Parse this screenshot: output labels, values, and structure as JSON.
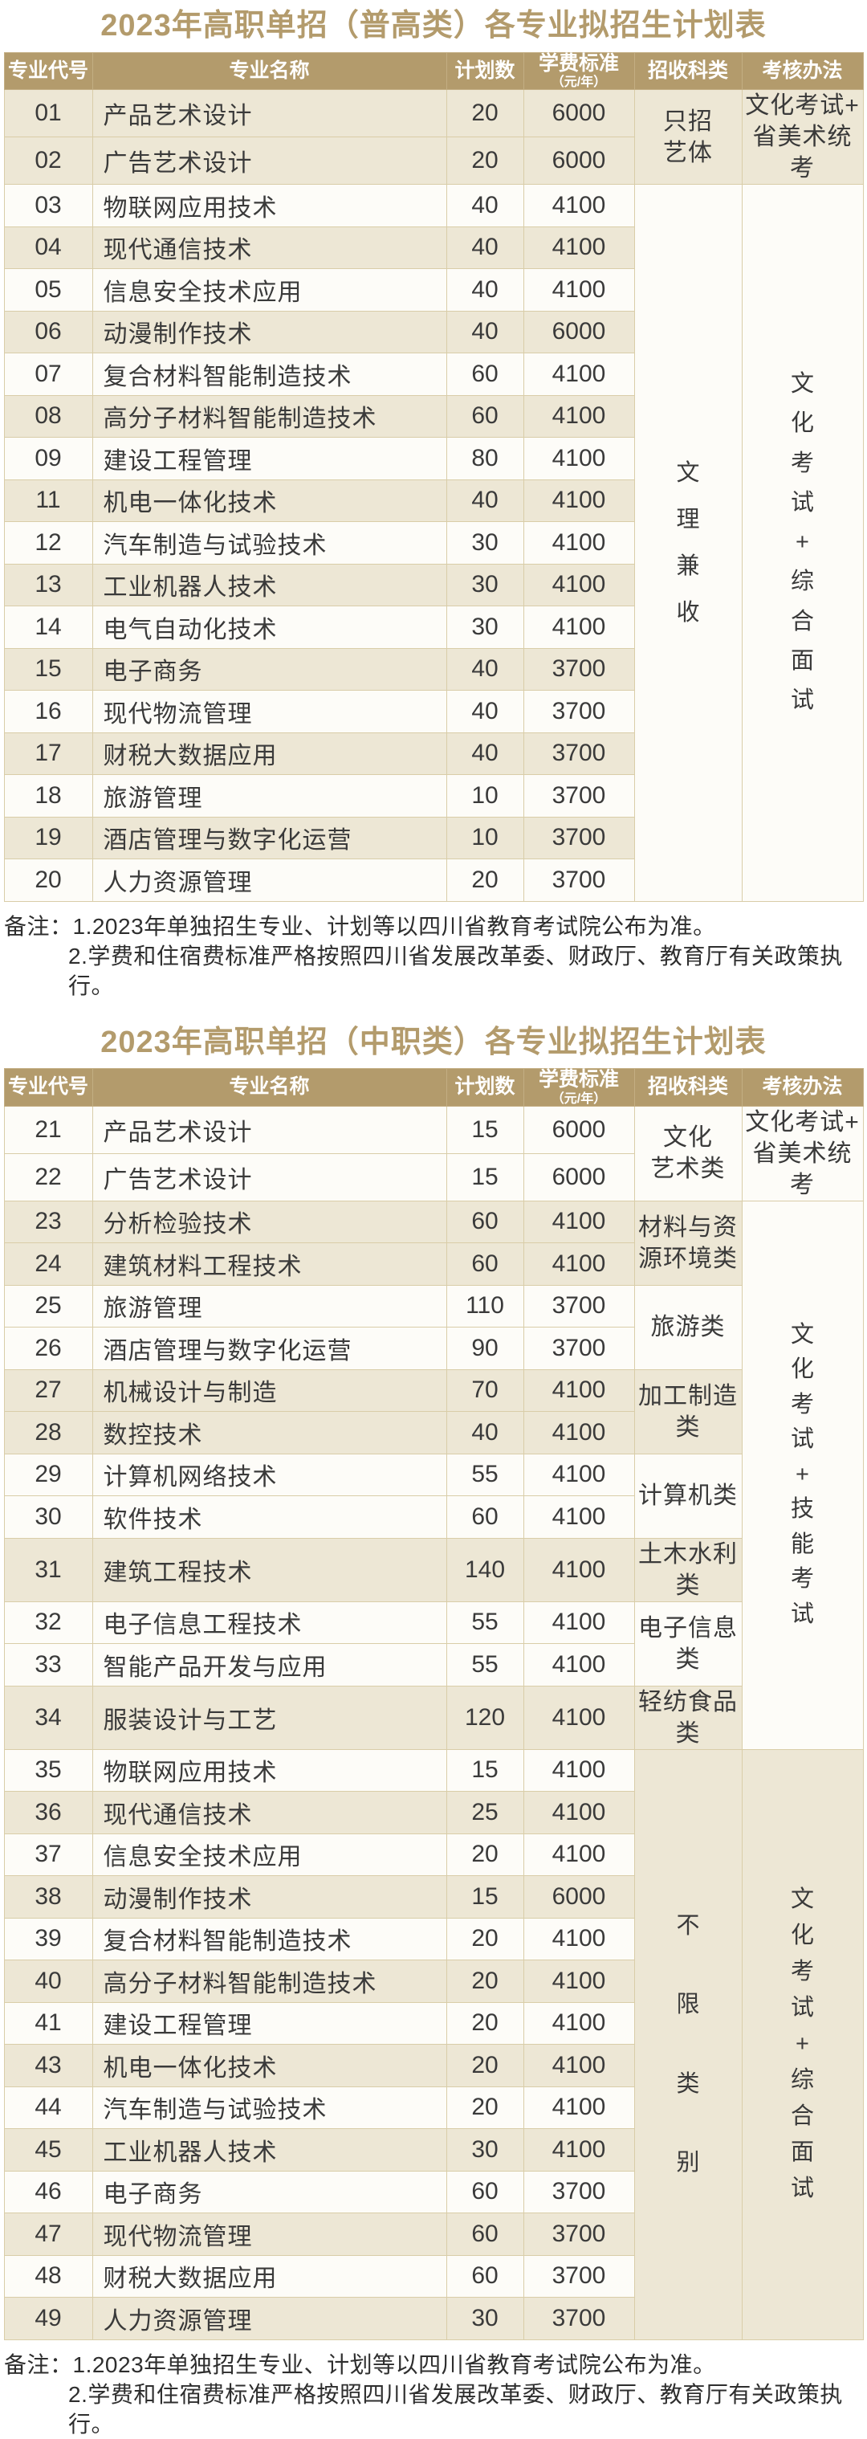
{
  "colors": {
    "accent_tan": "#b39b6c",
    "stripe_beige": "#ede7d5",
    "stripe_white": "#fdfcf8",
    "border": "#d9cda8",
    "header_text": "#ffffff",
    "body_text": "#3a3a3a"
  },
  "tables": [
    {
      "title": "2023年高职单招（普高类）各专业拟招生计划表",
      "columns": [
        {
          "key": "code",
          "label": "专业代号"
        },
        {
          "key": "major",
          "label": "专业名称"
        },
        {
          "key": "plan",
          "label": "计划数"
        },
        {
          "key": "tuition",
          "label": "学费标准",
          "sub": "（元/年）"
        },
        {
          "key": "category",
          "label": "招收科类"
        },
        {
          "key": "method",
          "label": "考核办法"
        }
      ],
      "rows": [
        {
          "code": "01",
          "major": "产品艺术设计",
          "plan": "20",
          "tuition": "6000",
          "stripe": "beige"
        },
        {
          "code": "02",
          "major": "广告艺术设计",
          "plan": "20",
          "tuition": "6000",
          "stripe": "beige"
        },
        {
          "code": "03",
          "major": "物联网应用技术",
          "plan": "40",
          "tuition": "4100",
          "stripe": "white"
        },
        {
          "code": "04",
          "major": "现代通信技术",
          "plan": "40",
          "tuition": "4100",
          "stripe": "beige"
        },
        {
          "code": "05",
          "major": "信息安全技术应用",
          "plan": "40",
          "tuition": "4100",
          "stripe": "white"
        },
        {
          "code": "06",
          "major": "动漫制作技术",
          "plan": "40",
          "tuition": "6000",
          "stripe": "beige"
        },
        {
          "code": "07",
          "major": "复合材料智能制造技术",
          "plan": "60",
          "tuition": "4100",
          "stripe": "white"
        },
        {
          "code": "08",
          "major": "高分子材料智能制造技术",
          "plan": "60",
          "tuition": "4100",
          "stripe": "beige"
        },
        {
          "code": "09",
          "major": "建设工程管理",
          "plan": "80",
          "tuition": "4100",
          "stripe": "white"
        },
        {
          "code": "11",
          "major": "机电一体化技术",
          "plan": "40",
          "tuition": "4100",
          "stripe": "beige"
        },
        {
          "code": "12",
          "major": "汽车制造与试验技术",
          "plan": "30",
          "tuition": "4100",
          "stripe": "white"
        },
        {
          "code": "13",
          "major": "工业机器人技术",
          "plan": "30",
          "tuition": "4100",
          "stripe": "beige"
        },
        {
          "code": "14",
          "major": "电气自动化技术",
          "plan": "30",
          "tuition": "4100",
          "stripe": "white"
        },
        {
          "code": "15",
          "major": "电子商务",
          "plan": "40",
          "tuition": "3700",
          "stripe": "beige"
        },
        {
          "code": "16",
          "major": "现代物流管理",
          "plan": "40",
          "tuition": "3700",
          "stripe": "white"
        },
        {
          "code": "17",
          "major": "财税大数据应用",
          "plan": "40",
          "tuition": "3700",
          "stripe": "beige"
        },
        {
          "code": "18",
          "major": "旅游管理",
          "plan": "10",
          "tuition": "3700",
          "stripe": "white"
        },
        {
          "code": "19",
          "major": "酒店管理与数字化运营",
          "plan": "10",
          "tuition": "3700",
          "stripe": "beige"
        },
        {
          "code": "20",
          "major": "人力资源管理",
          "plan": "20",
          "tuition": "3700",
          "stripe": "white"
        }
      ],
      "category_groups": [
        {
          "start": 0,
          "span": 2,
          "lines": [
            "只招",
            "艺体"
          ],
          "bg": "beige"
        },
        {
          "start": 2,
          "span": 17,
          "text": "文理兼收",
          "vertical": true,
          "line_height": 2.0,
          "bg": "white"
        }
      ],
      "method_groups": [
        {
          "start": 0,
          "span": 2,
          "lines": [
            "文化考试+",
            "省美术统考"
          ],
          "bg": "beige"
        },
        {
          "start": 2,
          "span": 17,
          "text": "文化考试+综合面试",
          "vertical": true,
          "line_height": 1.7,
          "bg": "white"
        }
      ],
      "notes": [
        "备注：1.2023年单独招生专业、计划等以四川省教育考试院公布为准。",
        "2.学费和住宿费标准严格按照四川省发展改革委、财政厅、教育厅有关政策执行。"
      ]
    },
    {
      "title": "2023年高职单招（中职类）各专业拟招生计划表",
      "columns": [
        {
          "key": "code",
          "label": "专业代号"
        },
        {
          "key": "major",
          "label": "专业名称"
        },
        {
          "key": "plan",
          "label": "计划数"
        },
        {
          "key": "tuition",
          "label": "学费标准",
          "sub": "（元/年）"
        },
        {
          "key": "category",
          "label": "招收科类"
        },
        {
          "key": "method",
          "label": "考核办法"
        }
      ],
      "rows": [
        {
          "code": "21",
          "major": "产品艺术设计",
          "plan": "15",
          "tuition": "6000",
          "stripe": "white"
        },
        {
          "code": "22",
          "major": "广告艺术设计",
          "plan": "15",
          "tuition": "6000",
          "stripe": "white"
        },
        {
          "code": "23",
          "major": "分析检验技术",
          "plan": "60",
          "tuition": "4100",
          "stripe": "beige"
        },
        {
          "code": "24",
          "major": "建筑材料工程技术",
          "plan": "60",
          "tuition": "4100",
          "stripe": "beige"
        },
        {
          "code": "25",
          "major": "旅游管理",
          "plan": "110",
          "tuition": "3700",
          "stripe": "white"
        },
        {
          "code": "26",
          "major": "酒店管理与数字化运营",
          "plan": "90",
          "tuition": "3700",
          "stripe": "white"
        },
        {
          "code": "27",
          "major": "机械设计与制造",
          "plan": "70",
          "tuition": "4100",
          "stripe": "beige"
        },
        {
          "code": "28",
          "major": "数控技术",
          "plan": "40",
          "tuition": "4100",
          "stripe": "beige"
        },
        {
          "code": "29",
          "major": "计算机网络技术",
          "plan": "55",
          "tuition": "4100",
          "stripe": "white"
        },
        {
          "code": "30",
          "major": "软件技术",
          "plan": "60",
          "tuition": "4100",
          "stripe": "white"
        },
        {
          "code": "31",
          "major": "建筑工程技术",
          "plan": "140",
          "tuition": "4100",
          "stripe": "beige"
        },
        {
          "code": "32",
          "major": "电子信息工程技术",
          "plan": "55",
          "tuition": "4100",
          "stripe": "white"
        },
        {
          "code": "33",
          "major": "智能产品开发与应用",
          "plan": "55",
          "tuition": "4100",
          "stripe": "white"
        },
        {
          "code": "34",
          "major": "服装设计与工艺",
          "plan": "120",
          "tuition": "4100",
          "stripe": "beige"
        },
        {
          "code": "35",
          "major": "物联网应用技术",
          "plan": "15",
          "tuition": "4100",
          "stripe": "white"
        },
        {
          "code": "36",
          "major": "现代通信技术",
          "plan": "25",
          "tuition": "4100",
          "stripe": "beige"
        },
        {
          "code": "37",
          "major": "信息安全技术应用",
          "plan": "20",
          "tuition": "4100",
          "stripe": "white"
        },
        {
          "code": "38",
          "major": "动漫制作技术",
          "plan": "15",
          "tuition": "6000",
          "stripe": "beige"
        },
        {
          "code": "39",
          "major": "复合材料智能制造技术",
          "plan": "20",
          "tuition": "4100",
          "stripe": "white"
        },
        {
          "code": "40",
          "major": "高分子材料智能制造技术",
          "plan": "20",
          "tuition": "4100",
          "stripe": "beige"
        },
        {
          "code": "41",
          "major": "建设工程管理",
          "plan": "20",
          "tuition": "4100",
          "stripe": "white"
        },
        {
          "code": "43",
          "major": "机电一体化技术",
          "plan": "20",
          "tuition": "4100",
          "stripe": "beige"
        },
        {
          "code": "44",
          "major": "汽车制造与试验技术",
          "plan": "20",
          "tuition": "4100",
          "stripe": "white"
        },
        {
          "code": "45",
          "major": "工业机器人技术",
          "plan": "30",
          "tuition": "4100",
          "stripe": "beige"
        },
        {
          "code": "46",
          "major": "电子商务",
          "plan": "60",
          "tuition": "3700",
          "stripe": "white"
        },
        {
          "code": "47",
          "major": "现代物流管理",
          "plan": "60",
          "tuition": "3700",
          "stripe": "beige"
        },
        {
          "code": "48",
          "major": "财税大数据应用",
          "plan": "60",
          "tuition": "3700",
          "stripe": "white"
        },
        {
          "code": "49",
          "major": "人力资源管理",
          "plan": "30",
          "tuition": "3700",
          "stripe": "beige"
        }
      ],
      "category_groups": [
        {
          "start": 0,
          "span": 2,
          "lines": [
            "文化",
            "艺术类"
          ],
          "bg": "white"
        },
        {
          "start": 2,
          "span": 2,
          "lines": [
            "材料与资",
            "源环境类"
          ],
          "bg": "beige"
        },
        {
          "start": 4,
          "span": 2,
          "lines": [
            "旅游类"
          ],
          "bg": "white"
        },
        {
          "start": 6,
          "span": 2,
          "lines": [
            "加工制造类"
          ],
          "bg": "beige"
        },
        {
          "start": 8,
          "span": 2,
          "lines": [
            "计算机类"
          ],
          "bg": "white"
        },
        {
          "start": 10,
          "span": 1,
          "lines": [
            "土木水利类"
          ],
          "bg": "beige"
        },
        {
          "start": 11,
          "span": 2,
          "lines": [
            "电子信息类"
          ],
          "bg": "white"
        },
        {
          "start": 13,
          "span": 1,
          "lines": [
            "轻纺食品类"
          ],
          "bg": "beige"
        },
        {
          "start": 14,
          "span": 14,
          "text": "不限类别",
          "vertical": true,
          "line_height": 3.4,
          "bg": "beige"
        }
      ],
      "method_groups": [
        {
          "start": 0,
          "span": 2,
          "lines": [
            "文化考试+",
            "省美术统考"
          ],
          "bg": "white"
        },
        {
          "start": 2,
          "span": 12,
          "text": "文化考试+技能考试",
          "vertical": true,
          "line_height": 1.5,
          "bg": "white"
        },
        {
          "start": 14,
          "span": 14,
          "text": "文化考试+综合面试",
          "vertical": true,
          "line_height": 1.55,
          "bg": "beige"
        }
      ],
      "notes": [
        "备注：1.2023年单独招生专业、计划等以四川省教育考试院公布为准。",
        "2.学费和住宿费标准严格按照四川省发展改革委、财政厅、教育厅有关政策执行。"
      ]
    }
  ]
}
